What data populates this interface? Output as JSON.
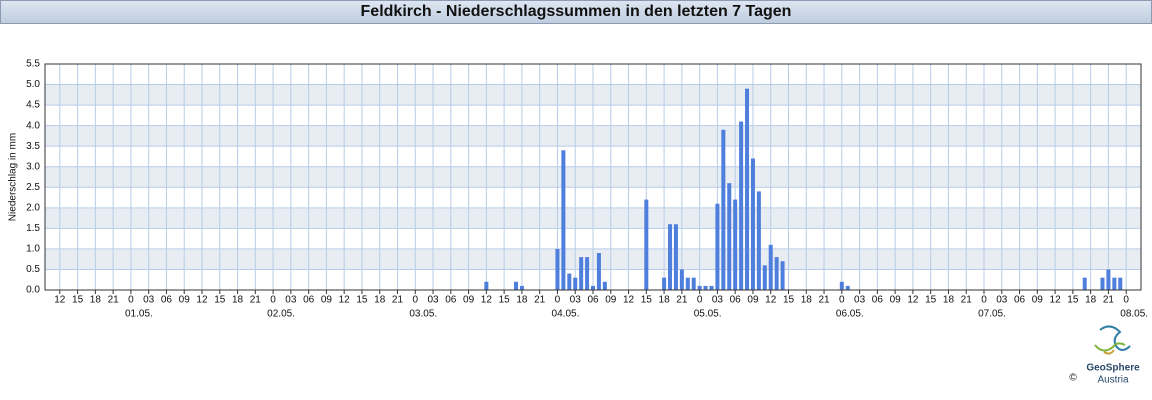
{
  "chart_data": {
    "type": "bar",
    "title": "Feldkirch - Niederschlagssummen in den letzten 7 Tagen",
    "y_label": "Niederschlag in mm",
    "color": "#4f7fdc",
    "grid": true,
    "xlim": [
      -14.5,
      170.5
    ],
    "ylim": [
      0,
      5.5
    ],
    "yticks": [
      {
        "value": 0,
        "label": "0.0"
      },
      0.5,
      {
        "value": 1,
        "label": "1.0"
      },
      1.5,
      {
        "value": 2,
        "label": "2.0"
      },
      2.5,
      {
        "value": 3,
        "label": "3.0"
      },
      3.5,
      {
        "value": 4,
        "label": "4.0"
      },
      4.5,
      {
        "value": 5,
        "label": "5.0"
      },
      5.5
    ],
    "xticks": [
      {
        "value": -12,
        "label": "12"
      },
      {
        "value": -9,
        "label": "15"
      },
      {
        "value": -6,
        "label": "18"
      },
      {
        "value": -3,
        "label": "21"
      },
      0,
      {
        "value": 3,
        "label": "03"
      },
      {
        "value": 6,
        "label": "06"
      },
      {
        "value": 9,
        "label": "09"
      },
      12,
      15,
      18,
      21,
      {
        "value": 24,
        "label": "0"
      },
      {
        "value": 27,
        "label": "03"
      },
      {
        "value": 30,
        "label": "06"
      },
      {
        "value": 33,
        "label": "09"
      },
      {
        "value": 36,
        "label": "12"
      },
      {
        "value": 39,
        "label": "15"
      },
      {
        "value": 42,
        "label": "18"
      },
      {
        "value": 45,
        "label": "21"
      },
      {
        "value": 48,
        "label": "0"
      },
      {
        "value": 51,
        "label": "03"
      },
      {
        "value": 54,
        "label": "06"
      },
      {
        "value": 57,
        "label": "09"
      },
      {
        "value": 60,
        "label": "12"
      },
      {
        "value": 63,
        "label": "15"
      },
      {
        "value": 66,
        "label": "18"
      },
      {
        "value": 69,
        "label": "21"
      },
      {
        "value": 72,
        "label": "0"
      },
      {
        "value": 75,
        "label": "03"
      },
      {
        "value": 78,
        "label": "06"
      },
      {
        "value": 81,
        "label": "09"
      },
      {
        "value": 84,
        "label": "12"
      },
      {
        "value": 87,
        "label": "15"
      },
      {
        "value": 90,
        "label": "18"
      },
      {
        "value": 93,
        "label": "21"
      },
      {
        "value": 96,
        "label": "0"
      },
      {
        "value": 99,
        "label": "03"
      },
      {
        "value": 102,
        "label": "06"
      },
      {
        "value": 105,
        "label": "09"
      },
      {
        "value": 108,
        "label": "12"
      },
      {
        "value": 111,
        "label": "15"
      },
      {
        "value": 114,
        "label": "18"
      },
      {
        "value": 117,
        "label": "21"
      },
      {
        "value": 120,
        "label": "0"
      },
      {
        "value": 123,
        "label": "03"
      },
      {
        "value": 126,
        "label": "06"
      },
      {
        "value": 129,
        "label": "09"
      },
      {
        "value": 132,
        "label": "12"
      },
      {
        "value": 135,
        "label": "15"
      },
      {
        "value": 138,
        "label": "18"
      },
      {
        "value": 141,
        "label": "21"
      },
      {
        "value": 144,
        "label": "0"
      },
      {
        "value": 147,
        "label": "03"
      },
      {
        "value": 150,
        "label": "06"
      },
      {
        "value": 153,
        "label": "09"
      },
      {
        "value": 156,
        "label": "12"
      },
      {
        "value": 159,
        "label": "15"
      },
      {
        "value": 162,
        "label": "18"
      },
      {
        "value": 165,
        "label": "21"
      },
      {
        "value": 168,
        "label": "0"
      }
    ],
    "date_labels": [
      {
        "value": 0,
        "label": "01.05."
      },
      {
        "value": 24,
        "label": "02.05."
      },
      {
        "value": 48,
        "label": "03.05."
      },
      {
        "value": 72,
        "label": "04.05."
      },
      {
        "value": 96,
        "label": "05.05."
      },
      {
        "value": 120,
        "label": "06.05."
      },
      {
        "value": 144,
        "label": "07.05."
      },
      {
        "value": 168,
        "label": "08.05."
      }
    ],
    "x": [
      60,
      65,
      66,
      72,
      73,
      74,
      75,
      76,
      77,
      78,
      79,
      80,
      87,
      90,
      91,
      92,
      93,
      94,
      95,
      96,
      97,
      98,
      99,
      100,
      101,
      102,
      103,
      104,
      105,
      106,
      107,
      108,
      109,
      110,
      120,
      121,
      161,
      164,
      165,
      166,
      167
    ],
    "values": [
      0.2,
      0.2,
      0.1,
      1.0,
      3.4,
      0.4,
      0.3,
      0.8,
      0.8,
      0.1,
      0.9,
      0.2,
      2.2,
      0.3,
      1.6,
      1.6,
      0.5,
      0.3,
      0.3,
      0.1,
      0.1,
      0.1,
      2.1,
      3.9,
      2.6,
      2.2,
      4.1,
      4.9,
      3.2,
      2.4,
      0.6,
      1.1,
      0.8,
      0.7,
      0.2,
      0.1,
      0.3,
      0.3,
      0.5,
      0.3,
      0.3
    ]
  },
  "logo": {
    "name": "GeoSphere",
    "sub": "Austria",
    "copyright": "©"
  }
}
